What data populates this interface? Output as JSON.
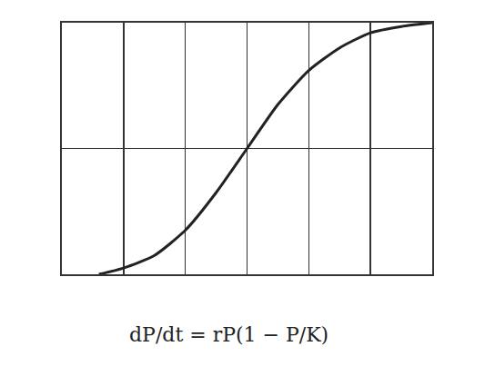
{
  "chart_data": {
    "type": "line",
    "x": [
      0.6,
      1,
      1.5,
      2,
      2.5,
      3,
      3.5,
      4,
      4.5,
      5,
      5.5,
      6
    ],
    "values": [
      0,
      0.05,
      0.15,
      0.35,
      0.65,
      1.0,
      1.35,
      1.62,
      1.8,
      1.92,
      1.97,
      2.0
    ],
    "color": "#222222",
    "xlim": [
      0,
      6
    ],
    "ylim": [
      0,
      2
    ],
    "xticks": [
      0,
      1,
      2,
      3,
      4,
      5,
      6
    ],
    "yticks": [
      0,
      1,
      2
    ],
    "grid": true,
    "tick_labels": false,
    "annotations": [
      "dP/dt = rP(1 − P/K)"
    ]
  }
}
